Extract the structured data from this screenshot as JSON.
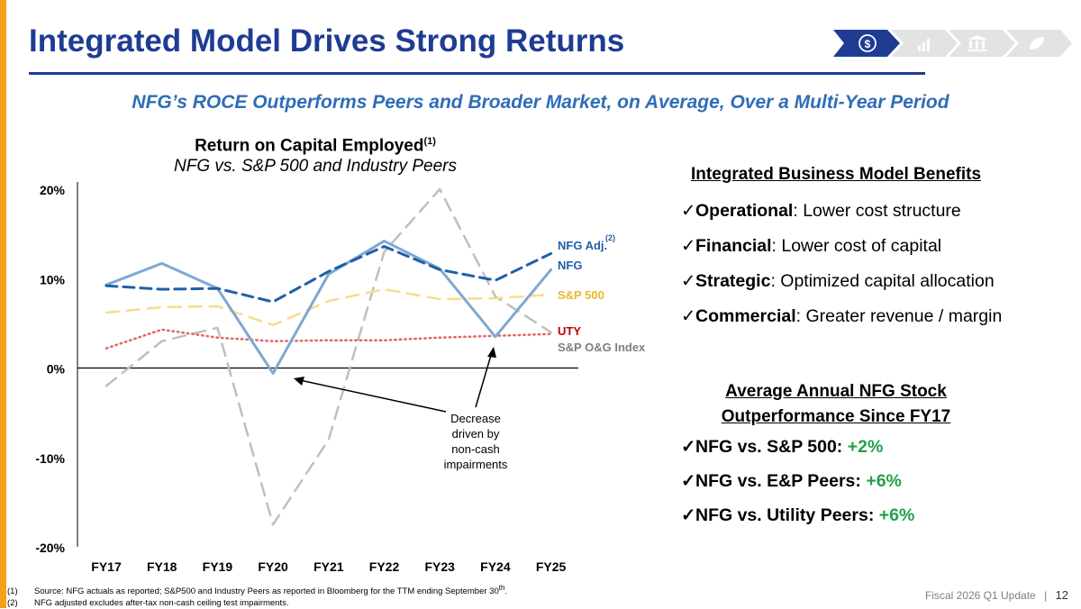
{
  "page": {
    "title": "Integrated Model Drives Strong Returns",
    "subtitle": "NFG’s ROCE Outperforms Peers and Broader Market, on Average, Over a Multi-Year Period",
    "nav_icons": [
      "dollar-icon",
      "bar-chart-icon",
      "bank-icon",
      "leaf-icon"
    ],
    "accent_color": "#1f3c93",
    "bar_color": "#f5a01a"
  },
  "chart_title": {
    "line1": "Return on Capital Employed",
    "line1_sup": "(1)",
    "line2": "NFG vs. S&P 500 and Industry Peers"
  },
  "chart_data": {
    "type": "line",
    "categories": [
      "FY17",
      "FY18",
      "FY19",
      "FY20",
      "FY21",
      "FY22",
      "FY23",
      "FY24",
      "FY25"
    ],
    "y_ticks": [
      "20%",
      "10%",
      "0%",
      "-10%",
      "-20%"
    ],
    "ylim": [
      -20,
      20
    ],
    "grid": false,
    "series": [
      {
        "name": "S&P O&G Index",
        "values": [
          -2,
          3,
          4.5,
          -17.5,
          -8,
          13,
          20,
          8,
          4
        ],
        "color": "#bfbfbf",
        "style": "dashed"
      },
      {
        "name": "UTY",
        "values": [
          2.2,
          4.3,
          3.4,
          3.0,
          3.1,
          3.1,
          3.4,
          3.6,
          3.8
        ],
        "color": "#e06666",
        "style": "dotted"
      },
      {
        "name": "S&P 500",
        "values": [
          6.2,
          6.8,
          6.9,
          4.8,
          7.5,
          8.8,
          7.7,
          7.8,
          8.2
        ],
        "color": "#f7dc8b",
        "style": "dashed"
      },
      {
        "name": "NFG",
        "values": [
          9.3,
          11.7,
          8.9,
          -0.6,
          10.5,
          14.2,
          11.1,
          3.5,
          11.0
        ],
        "color": "#7fa8d2",
        "style": "solid"
      },
      {
        "name": "NFG Adj.",
        "name_sup": "(2)",
        "values": [
          9.2,
          8.8,
          8.9,
          7.4,
          10.8,
          13.6,
          11.0,
          9.8,
          12.8
        ],
        "color": "#1f5fa8",
        "style": "dashed"
      }
    ],
    "annotation": "Decrease driven by non-cash impairments"
  },
  "benefits": {
    "heading": "Integrated Business Model Benefits",
    "items": [
      {
        "bold": "Operational",
        "text": ": Lower cost structure"
      },
      {
        "bold": "Financial",
        "text": ": Lower cost of capital"
      },
      {
        "bold": "Strategic",
        "text": ": Optimized capital allocation"
      },
      {
        "bold": "Commercial",
        "text": ": Greater revenue / margin"
      }
    ]
  },
  "outperformance": {
    "heading_line1": "Average Annual NFG Stock",
    "heading_line2": "Outperformance Since FY17",
    "items": [
      {
        "label": "NFG vs. S&P 500: ",
        "value": "+2%"
      },
      {
        "label": "NFG vs. E&P Peers: ",
        "value": "+6%"
      },
      {
        "label": "NFG vs. Utility Peers: ",
        "value": "+6%"
      }
    ],
    "positive_color": "#22a04b"
  },
  "footnotes": [
    {
      "num": "(1)",
      "text": "Source: NFG actuals as reported; S&P500 and Industry Peers as reported in Bloomberg for the TTM ending September 30",
      "sup": "th",
      "tail": "."
    },
    {
      "num": "(2)",
      "text": "NFG adjusted excludes after-tax non-cash ceiling test impairments.",
      "sup": "",
      "tail": ""
    }
  ],
  "footer": {
    "label": "Fiscal 2026 Q1 Update",
    "separator": "|",
    "page_number": "12"
  }
}
